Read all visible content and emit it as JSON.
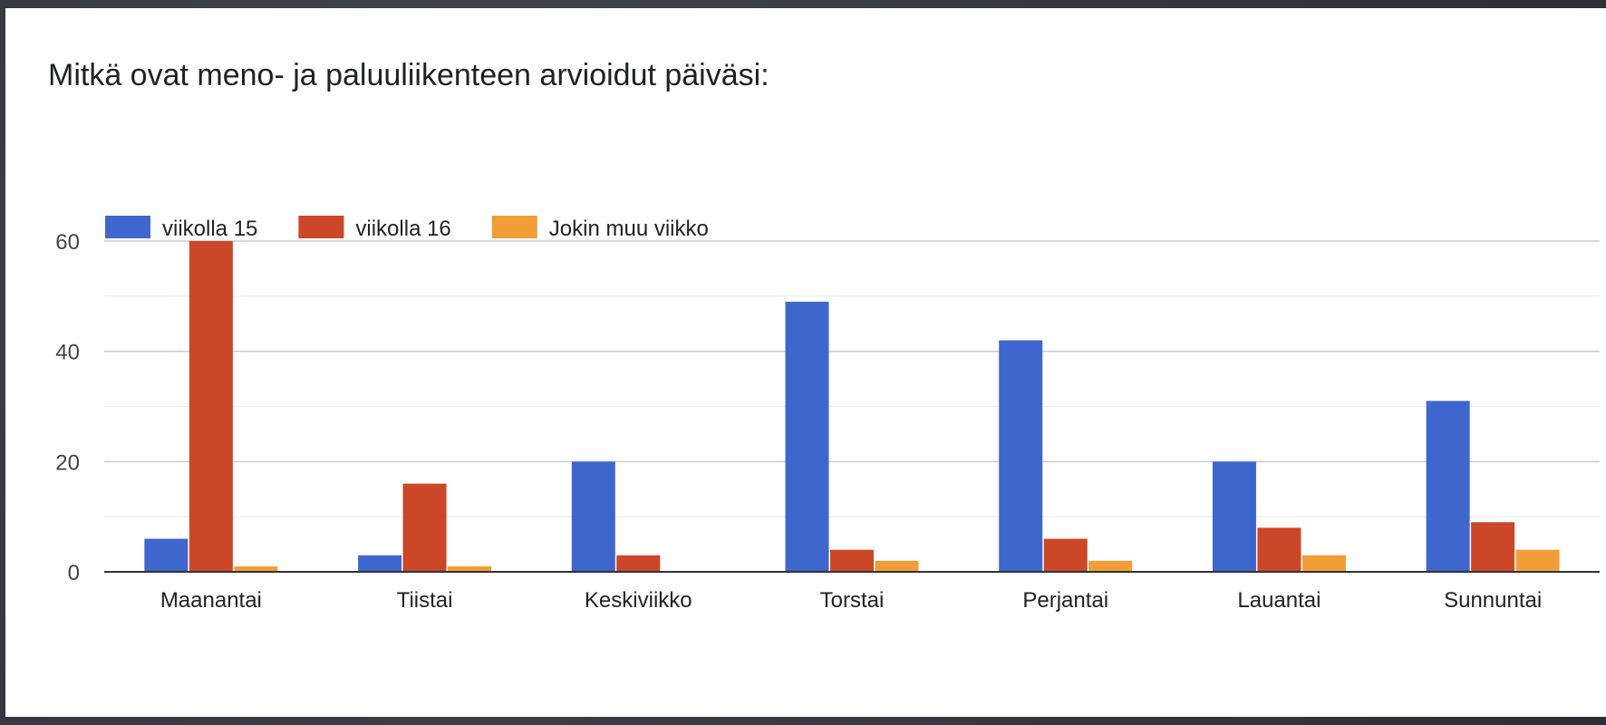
{
  "title": "Mitkä ovat meno- ja paluuliikenteen arvioidut päiväsi:",
  "chart_data": {
    "type": "bar",
    "categories": [
      "Maanantai",
      "Tiistai",
      "Keskiviikko",
      "Torstai",
      "Perjantai",
      "Lauantai",
      "Sunnuntai"
    ],
    "series": [
      {
        "name": "viikolla 15",
        "color": "#3f66cc",
        "values": [
          6,
          3,
          20,
          49,
          42,
          20,
          31
        ]
      },
      {
        "name": "viikolla 16",
        "color": "#cc4628",
        "values": [
          60,
          16,
          3,
          4,
          6,
          8,
          9
        ]
      },
      {
        "name": "Jokin muu viikko",
        "color": "#f19e38",
        "values": [
          1,
          1,
          0,
          2,
          2,
          3,
          4
        ]
      }
    ],
    "yticks": [
      0,
      20,
      40,
      60
    ],
    "ylim": [
      0,
      60
    ],
    "grid": true,
    "legend_position": "top-left"
  }
}
